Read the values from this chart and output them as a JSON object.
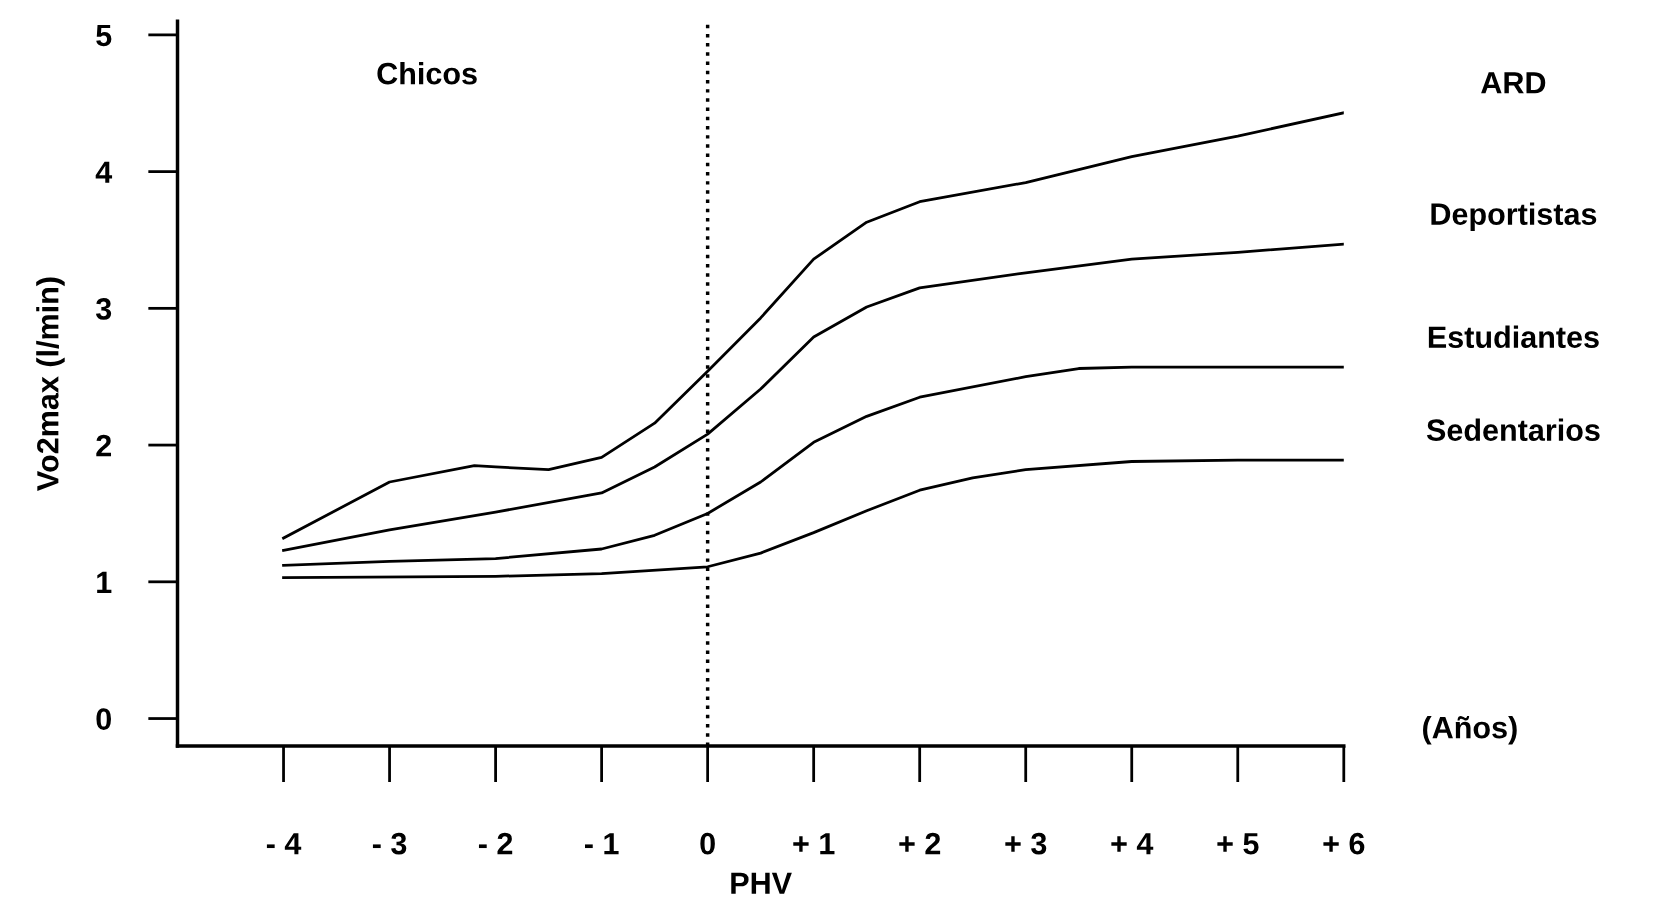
{
  "chart_data": {
    "type": "line",
    "xlabel": "PHV",
    "ylabel": "Vo2max (l/min)",
    "annotations": [
      "Chicos",
      "(Años)"
    ],
    "xlim": [
      -5,
      6
    ],
    "ylim": [
      -0.2,
      5.1
    ],
    "xticks": [
      {
        "value": -4,
        "label": "- 4"
      },
      {
        "value": -3,
        "label": "- 3"
      },
      {
        "value": -2,
        "label": "- 2"
      },
      {
        "value": -1,
        "label": "- 1"
      },
      0,
      {
        "value": 1,
        "label": "+ 1"
      },
      {
        "value": 2,
        "label": "+ 2"
      },
      {
        "value": 3,
        "label": "+ 3"
      },
      {
        "value": 4,
        "label": "+ 4"
      },
      {
        "value": 5,
        "label": "+ 5"
      },
      {
        "value": 6,
        "label": "+ 6"
      }
    ],
    "yticks": [
      0,
      1,
      2,
      3,
      4,
      5
    ],
    "grid": false,
    "legend": false,
    "marker": "none",
    "line_style": "solid",
    "ref_lines": [
      {
        "axis": "x",
        "value": 0,
        "line_style": "dotted",
        "color": "#000000"
      }
    ],
    "series": [
      {
        "name": "ARD",
        "color": "#000000",
        "x": [
          -4,
          -3,
          -2.2,
          -2,
          -1.5,
          -1,
          -0.5,
          0,
          0.5,
          1,
          1.5,
          2,
          3,
          4,
          5,
          6
        ],
        "values": [
          1.32,
          1.73,
          1.85,
          1.84,
          1.82,
          1.91,
          2.16,
          2.54,
          2.93,
          3.36,
          3.63,
          3.78,
          3.92,
          4.11,
          4.26,
          4.43
        ]
      },
      {
        "name": "Deportistas",
        "color": "#000000",
        "x": [
          -4,
          -3,
          -2,
          -1,
          -0.5,
          0,
          0.5,
          1,
          1.5,
          2,
          3,
          4,
          5,
          6
        ],
        "values": [
          1.23,
          1.38,
          1.51,
          1.65,
          1.84,
          2.08,
          2.41,
          2.79,
          3.01,
          3.15,
          3.26,
          3.36,
          3.41,
          3.47
        ]
      },
      {
        "name": "Estudiantes",
        "color": "#000000",
        "x": [
          -4,
          -3,
          -2,
          -1,
          -0.5,
          0,
          0.5,
          1,
          1.5,
          2,
          3,
          3.5,
          4,
          5,
          6
        ],
        "values": [
          1.12,
          1.15,
          1.17,
          1.24,
          1.34,
          1.5,
          1.73,
          2.02,
          2.21,
          2.35,
          2.5,
          2.56,
          2.57,
          2.57,
          2.57
        ]
      },
      {
        "name": "Sedentarios",
        "color": "#000000",
        "x": [
          -4,
          -2,
          -1,
          0,
          0.5,
          1,
          1.5,
          2,
          2.5,
          3,
          4,
          5,
          6
        ],
        "values": [
          1.03,
          1.04,
          1.06,
          1.11,
          1.21,
          1.36,
          1.52,
          1.67,
          1.76,
          1.82,
          1.88,
          1.89,
          1.89
        ]
      }
    ]
  }
}
